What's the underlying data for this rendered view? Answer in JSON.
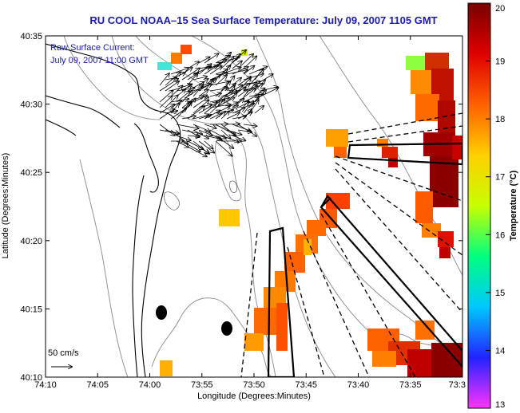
{
  "title": "RU COOL  NOAA–15  Sea Surface Temperature:  July 09, 2007 1105 GMT",
  "annotation": {
    "line1": "Raw Surface Current:",
    "line2": "July 09, 2007 11:00 GMT"
  },
  "scale_label": "50 cm/s",
  "axes": {
    "xlabel": "Longitude (Degrees:Minutes)",
    "ylabel": "Latitude (Degrees:Minutes)",
    "x_ticks": [
      "74:10",
      "74:05",
      "74:00",
      "73:55",
      "73:50",
      "73:45",
      "73:40",
      "73:35",
      "73:3"
    ],
    "y_ticks": [
      "40:35",
      "40:30",
      "40:25",
      "40:20",
      "40:15",
      "40:10"
    ]
  },
  "colorbar": {
    "label": "Temperature (°C)",
    "min": 13,
    "max": 20,
    "ticks": [
      "20",
      "19",
      "18",
      "17",
      "16",
      "15",
      "14",
      "13"
    ],
    "colors": [
      "#ff33ff",
      "#2222ff",
      "#00c8ff",
      "#00ff80",
      "#c8ff00",
      "#ffd000",
      "#ff6000",
      "#e00000",
      "#780000"
    ]
  },
  "colors": {
    "title": "#1a1ab0",
    "coast": "#000000",
    "bathymetry": "#8a8a8a"
  }
}
